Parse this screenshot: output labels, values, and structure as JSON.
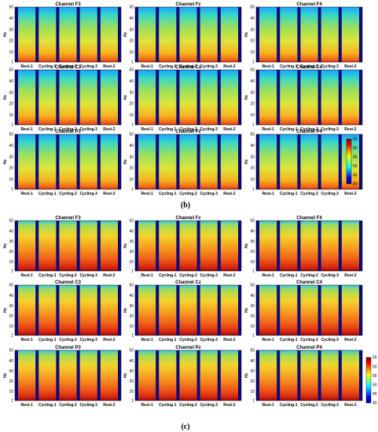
{
  "figure_labels": {
    "b": "(b)",
    "c": "(c)"
  },
  "chart_data": {
    "type": "heatmap",
    "ylabel": "Hz",
    "y_ticks": [
      1,
      10,
      20,
      30,
      40,
      50
    ],
    "ylim": [
      1,
      50
    ],
    "categories": [
      "Rest-1",
      "Cycling-1",
      "Cycling-2",
      "Cycling-3",
      "Rest-2"
    ],
    "colormap": "jet",
    "panels": [
      {
        "id": "b",
        "colorbar_ticks": [
          40,
          45,
          50,
          55,
          60,
          65
        ],
        "colorbar_range": [
          40,
          65
        ],
        "channels": [
          "Channel F3",
          "Channel Fz",
          "Channel F4",
          "Channel C3",
          "Channel Cz",
          "Channel C4",
          "Channel P3",
          "Channel Pz",
          "Channel P4"
        ]
      },
      {
        "id": "c",
        "colorbar_ticks": [
          40,
          45,
          50,
          55,
          60,
          65
        ],
        "colorbar_range": [
          40,
          65
        ],
        "channels": [
          "Channel F3",
          "Channel Fz",
          "Channel F4",
          "Channel C3",
          "Channel Cz",
          "Channel C4",
          "Channel P3",
          "Channel Pz",
          "Channel P4"
        ]
      }
    ]
  },
  "colors": {
    "gap": "#0a0a7e",
    "low": "#0000a0",
    "high": "#a00000"
  }
}
